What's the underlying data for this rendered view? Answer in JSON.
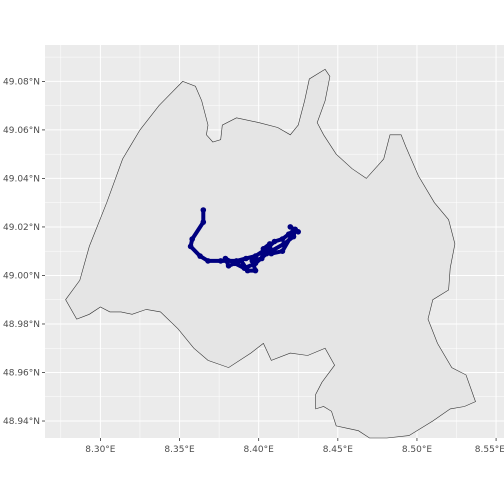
{
  "chart_data": {
    "type": "map",
    "x_range": [
      8.265,
      8.555
    ],
    "y_range": [
      48.933,
      49.095
    ],
    "colors": {
      "panel": "#ebebeb",
      "grid": "#ffffff",
      "region_fill": "#e5e5e5",
      "region_stroke": "#333333",
      "track": "#000080",
      "tick_label": "#4d4d4d"
    },
    "x_ticks": [
      {
        "value": 8.3,
        "label": "8.30°E"
      },
      {
        "value": 8.35,
        "label": "8.35°E"
      },
      {
        "value": 8.4,
        "label": "8.40°E"
      },
      {
        "value": 8.45,
        "label": "8.45°E"
      },
      {
        "value": 8.5,
        "label": "8.50°E"
      },
      {
        "value": 8.55,
        "label": "8.55°E"
      }
    ],
    "y_ticks": [
      {
        "value": 48.94,
        "label": "48.94°N"
      },
      {
        "value": 48.96,
        "label": "48.96°N"
      },
      {
        "value": 48.98,
        "label": "48.98°N"
      },
      {
        "value": 49.0,
        "label": "49.00°N"
      },
      {
        "value": 49.02,
        "label": "49.02°N"
      },
      {
        "value": 49.04,
        "label": "49.04°N"
      },
      {
        "value": 49.06,
        "label": "49.06°N"
      },
      {
        "value": 49.08,
        "label": "49.08°N"
      }
    ],
    "boundary": [
      [
        8.278,
        48.99
      ],
      [
        8.287,
        48.998
      ],
      [
        8.293,
        49.012
      ],
      [
        8.304,
        49.03
      ],
      [
        8.314,
        49.048
      ],
      [
        8.325,
        49.06
      ],
      [
        8.337,
        49.07
      ],
      [
        8.346,
        49.076
      ],
      [
        8.352,
        49.08
      ],
      [
        8.36,
        49.078
      ],
      [
        8.364,
        49.072
      ],
      [
        8.368,
        49.062
      ],
      [
        8.367,
        49.058
      ],
      [
        8.371,
        49.055
      ],
      [
        8.376,
        49.056
      ],
      [
        8.377,
        49.062
      ],
      [
        8.386,
        49.065
      ],
      [
        8.4,
        49.063
      ],
      [
        8.412,
        49.061
      ],
      [
        8.42,
        49.058
      ],
      [
        8.425,
        49.062
      ],
      [
        8.429,
        49.072
      ],
      [
        8.432,
        49.081
      ],
      [
        8.442,
        49.085
      ],
      [
        8.445,
        49.082
      ],
      [
        8.442,
        49.072
      ],
      [
        8.437,
        49.063
      ],
      [
        8.441,
        49.058
      ],
      [
        8.449,
        49.05
      ],
      [
        8.459,
        49.044
      ],
      [
        8.468,
        49.04
      ],
      [
        8.479,
        49.048
      ],
      [
        8.483,
        49.058
      ],
      [
        8.49,
        49.058
      ],
      [
        8.493,
        49.053
      ],
      [
        8.501,
        49.041
      ],
      [
        8.511,
        49.03
      ],
      [
        8.52,
        49.023
      ],
      [
        8.524,
        49.013
      ],
      [
        8.521,
        49.003
      ],
      [
        8.52,
        48.994
      ],
      [
        8.51,
        48.99
      ],
      [
        8.507,
        48.982
      ],
      [
        8.513,
        48.972
      ],
      [
        8.522,
        48.962
      ],
      [
        8.531,
        48.959
      ],
      [
        8.537,
        48.948
      ],
      [
        8.53,
        48.946
      ],
      [
        8.521,
        48.945
      ],
      [
        8.51,
        48.94
      ],
      [
        8.495,
        48.934
      ],
      [
        8.481,
        48.933
      ],
      [
        8.47,
        48.933
      ],
      [
        8.463,
        48.936
      ],
      [
        8.456,
        48.937
      ],
      [
        8.449,
        48.938
      ],
      [
        8.446,
        48.944
      ],
      [
        8.441,
        48.946
      ],
      [
        8.436,
        48.945
      ],
      [
        8.436,
        48.951
      ],
      [
        8.44,
        48.956
      ],
      [
        8.448,
        48.963
      ],
      [
        8.442,
        48.97
      ],
      [
        8.431,
        48.967
      ],
      [
        8.42,
        48.968
      ],
      [
        8.408,
        48.965
      ],
      [
        8.403,
        48.972
      ],
      [
        8.395,
        48.968
      ],
      [
        8.381,
        48.962
      ],
      [
        8.368,
        48.965
      ],
      [
        8.359,
        48.97
      ],
      [
        8.349,
        48.978
      ],
      [
        8.338,
        48.985
      ],
      [
        8.329,
        48.986
      ],
      [
        8.32,
        48.984
      ],
      [
        8.313,
        48.985
      ],
      [
        8.306,
        48.985
      ],
      [
        8.3,
        48.987
      ],
      [
        8.293,
        48.984
      ],
      [
        8.285,
        48.982
      ]
    ],
    "track": [
      [
        8.365,
        49.027
      ],
      [
        8.365,
        49.022
      ],
      [
        8.358,
        49.015
      ],
      [
        8.357,
        49.012
      ],
      [
        8.363,
        49.008
      ],
      [
        8.368,
        49.006
      ],
      [
        8.376,
        49.006
      ],
      [
        8.386,
        49.006
      ],
      [
        8.392,
        49.007
      ],
      [
        8.398,
        49.008
      ],
      [
        8.405,
        49.011
      ],
      [
        8.41,
        49.014
      ],
      [
        8.415,
        49.015
      ],
      [
        8.419,
        49.017
      ],
      [
        8.423,
        49.019
      ],
      [
        8.422,
        49.016
      ],
      [
        8.416,
        49.013
      ],
      [
        8.405,
        49.009
      ],
      [
        8.398,
        49.005
      ],
      [
        8.391,
        49.003
      ],
      [
        8.385,
        49.005
      ],
      [
        8.379,
        49.007
      ],
      [
        8.381,
        49.004
      ],
      [
        8.389,
        49.006
      ],
      [
        8.393,
        49.002
      ],
      [
        8.398,
        49.002
      ],
      [
        8.396,
        49.006
      ],
      [
        8.402,
        49.007
      ],
      [
        8.403,
        49.011
      ],
      [
        8.407,
        49.013
      ],
      [
        8.408,
        49.009
      ],
      [
        8.415,
        49.01
      ],
      [
        8.423,
        49.019
      ],
      [
        8.425,
        49.018
      ],
      [
        8.42,
        49.02
      ]
    ]
  }
}
